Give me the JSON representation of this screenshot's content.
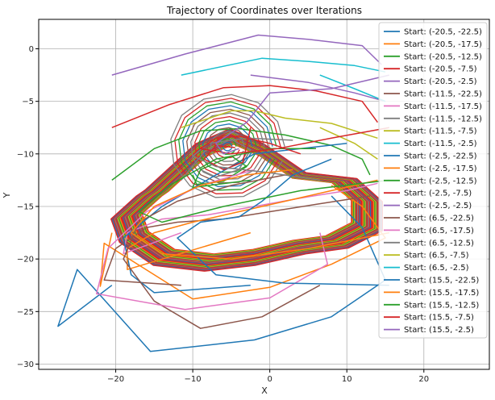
{
  "chart_data": {
    "type": "line",
    "title": "Trajectory of Coordinates over Iterations",
    "xlabel": "X",
    "ylabel": "Y",
    "xlim": [
      -30,
      28.5
    ],
    "ylim": [
      -30.5,
      2.8
    ],
    "x_ticks": [
      -20,
      -10,
      0,
      10,
      20
    ],
    "y_ticks": [
      0,
      -5,
      -10,
      -15,
      -20,
      -25,
      -30
    ],
    "grid": true,
    "legend": "top-right",
    "converged_loop": {
      "x": [
        -15,
        -9,
        -5,
        -1,
        4,
        10,
        13,
        13,
        9,
        4,
        -2,
        -8,
        -14,
        -18,
        -19,
        -16
      ],
      "y": [
        -13.5,
        -9.5,
        -8.2,
        -9.5,
        -12,
        -12.5,
        -14.5,
        -17,
        -18.5,
        -19,
        -20,
        -20.5,
        -20,
        -18,
        -16,
        -14
      ]
    },
    "series": [
      {
        "name": "Start: (-20.5, -22.5)",
        "color": "#1f77b4",
        "x": [
          -20.5,
          -27.5,
          -25,
          -15.5,
          -2,
          8,
          15,
          12,
          8
        ],
        "y": [
          -22.5,
          -26.4,
          -21,
          -28.8,
          -27.7,
          -25.5,
          -22,
          -17,
          -14
        ]
      },
      {
        "name": "Start: (-20.5, -17.5)",
        "color": "#ff7f0e",
        "x": [
          -20.5,
          -22,
          -21.5,
          -10,
          0,
          8,
          15,
          12,
          8
        ],
        "y": [
          -17.5,
          -22.6,
          -18.5,
          -23.8,
          -22.7,
          -20.5,
          -18,
          -15,
          -13
        ]
      },
      {
        "name": "Start: (-20.5, -12.5)",
        "color": "#2ca02c",
        "x": [
          -20.5,
          -15,
          -9,
          -4,
          2,
          8,
          12,
          13
        ],
        "y": [
          -12.5,
          -9.5,
          -7.8,
          -7.6,
          -8.2,
          -9.2,
          -10.5,
          -12
        ]
      },
      {
        "name": "Start: (-20.5, -7.5)",
        "color": "#d62728",
        "x": [
          -20.5,
          -13,
          -6,
          0,
          6,
          12,
          14
        ],
        "y": [
          -7.5,
          -5.3,
          -3.7,
          -3.5,
          -4,
          -5,
          -7
        ]
      },
      {
        "name": "Start: (-20.5, -2.5)",
        "color": "#9467bd",
        "x": [
          -20.5,
          -11,
          -1.5,
          5,
          12,
          14.5
        ],
        "y": [
          -2.5,
          -0.5,
          1.3,
          0.9,
          0.3,
          -1.5
        ]
      },
      {
        "name": "Start: (-11.5, -22.5)",
        "color": "#8c564b",
        "x": [
          -11.5,
          -21.5,
          -20,
          -16,
          -12,
          -6,
          0,
          6,
          13
        ],
        "y": [
          -22.5,
          -22,
          -19,
          -17,
          -16.5,
          -16.2,
          -15.5,
          -14.8,
          -14
        ]
      },
      {
        "name": "Start: (-11.5, -17.5)",
        "color": "#e377c2",
        "x": [
          -11.5,
          -19,
          -18.5,
          -14,
          -8,
          -2,
          4,
          10,
          14
        ],
        "y": [
          -17.5,
          -19.5,
          -17.5,
          -16.2,
          -15.8,
          -15,
          -14.2,
          -13.5,
          -12.8
        ]
      },
      {
        "name": "Start: (-11.5, -12.5)",
        "color": "#7f7f7f",
        "x": [
          -11.5,
          -8.5,
          -5,
          -2.5,
          -4,
          -7,
          -9
        ],
        "y": [
          -12.5,
          -9.8,
          -8.6,
          -9.6,
          -11.5,
          -12.2,
          -11.5
        ]
      },
      {
        "name": "Start: (-11.5, -7.5)",
        "color": "#bcbd22",
        "x": [
          -11.5,
          -5,
          -2,
          2,
          8,
          14
        ],
        "y": [
          -7.5,
          -5.9,
          -5.9,
          -6.6,
          -7.1,
          -8.5
        ]
      },
      {
        "name": "Start: (-11.5, -2.5)",
        "color": "#17becf",
        "x": [
          -11.5,
          -1,
          5,
          11,
          15
        ],
        "y": [
          -2.5,
          -0.9,
          -1.2,
          -1.6,
          -2.2
        ]
      },
      {
        "name": "Start: (-2.5, -22.5)",
        "color": "#1f77b4",
        "x": [
          -2.5,
          -15,
          -18,
          -19,
          -14,
          -7,
          -2,
          4,
          10
        ],
        "y": [
          -22.5,
          -23.2,
          -21.5,
          -18,
          -15,
          -12,
          -10,
          -9.5,
          -9
        ]
      },
      {
        "name": "Start: (-2.5, -17.5)",
        "color": "#ff7f0e",
        "x": [
          -2.5,
          -18.5,
          -18.5,
          -15,
          -10,
          -4,
          2,
          8,
          14
        ],
        "y": [
          -17.5,
          -21,
          -19,
          -17.5,
          -16.5,
          -15.5,
          -14.5,
          -13.5,
          -12.5
        ]
      },
      {
        "name": "Start: (-2.5, -12.5)",
        "color": "#2ca02c",
        "x": [
          -2.5,
          -10,
          -9,
          -5,
          -3,
          -6,
          -9.5,
          -10
        ],
        "y": [
          -12.5,
          -13.2,
          -11.5,
          -10.2,
          -11.2,
          -12.6,
          -12.9,
          -12
        ]
      },
      {
        "name": "Start: (-2.5, -7.5)",
        "color": "#d62728",
        "x": [
          -2.5,
          -3.5,
          -6,
          -8.5,
          -7,
          -4.5
        ],
        "y": [
          -7.5,
          -10.8,
          -11.5,
          -10.5,
          -9.2,
          -9.4
        ]
      },
      {
        "name": "Start: (-2.5, -2.5)",
        "color": "#9467bd",
        "x": [
          -2.5,
          5,
          11,
          15
        ],
        "y": [
          -2.5,
          -3.2,
          -4.2,
          -5
        ]
      },
      {
        "name": "Start: (6.5, -22.5)",
        "color": "#8c564b",
        "x": [
          6.5,
          -1,
          -9,
          -15,
          -19,
          -17,
          -12,
          -5,
          2
        ],
        "y": [
          -22.5,
          -25.5,
          -26.6,
          -24,
          -20,
          -16.5,
          -14.5,
          -13,
          -12
        ]
      },
      {
        "name": "Start: (6.5, -17.5)",
        "color": "#e377c2",
        "x": [
          6.5,
          7.5,
          0,
          -11,
          -22.5,
          -21,
          -16,
          -9,
          -2
        ],
        "y": [
          -17.5,
          -20.5,
          -23.7,
          -24.8,
          -23.3,
          -19,
          -15.5,
          -13,
          -11.5
        ]
      },
      {
        "name": "Start: (6.5, -12.5)",
        "color": "#7f7f7f",
        "x": [
          6.5,
          0,
          -7,
          -10,
          -8,
          -3,
          3
        ],
        "y": [
          -12.5,
          -11.8,
          -11.2,
          -10.2,
          -9,
          -8.5,
          -8.7
        ]
      },
      {
        "name": "Start: (6.5, -7.5)",
        "color": "#bcbd22",
        "x": [
          6.5,
          11,
          14
        ],
        "y": [
          -7.5,
          -9,
          -10.5
        ]
      },
      {
        "name": "Start: (6.5, -2.5)",
        "color": "#17becf",
        "x": [
          6.5,
          11,
          15
        ],
        "y": [
          -2.5,
          -3.8,
          -5
        ]
      },
      {
        "name": "Start: (15.5, -22.5)",
        "color": "#1f77b4",
        "x": [
          15.5,
          2,
          -7,
          -12,
          -9,
          -4,
          -1,
          3,
          8
        ],
        "y": [
          -22.5,
          -22.3,
          -21.5,
          -18,
          -16.5,
          -16,
          -14.5,
          -12,
          -10.5
        ]
      },
      {
        "name": "Start: (15.5, -17.5)",
        "color": "#ff7f0e",
        "x": [
          15.5,
          5,
          -5,
          -14,
          -18,
          -15,
          -9,
          -3,
          3
        ],
        "y": [
          -17.5,
          -19,
          -20,
          -19.5,
          -17.5,
          -15,
          -13,
          -12,
          -11.5
        ]
      },
      {
        "name": "Start: (15.5, -12.5)",
        "color": "#2ca02c",
        "x": [
          15.5,
          4,
          -6,
          -14,
          -17,
          -13,
          -7,
          0,
          6
        ],
        "y": [
          -12.5,
          -13.5,
          -15,
          -16.5,
          -15.5,
          -13,
          -10.5,
          -9.5,
          -9.5
        ]
      },
      {
        "name": "Start: (15.5, -7.5)",
        "color": "#d62728",
        "x": [
          15.5,
          8,
          1,
          -5,
          -9,
          -7,
          -4,
          0,
          4
        ],
        "y": [
          -7.5,
          -8.5,
          -9.5,
          -10,
          -9.5,
          -8.5,
          -8.3,
          -9,
          -10
        ]
      },
      {
        "name": "Start: (15.5, -2.5)",
        "color": "#9467bd",
        "x": [
          15.5,
          8,
          0,
          -3,
          -7,
          -6,
          -4
        ],
        "y": [
          -2.5,
          -3.8,
          -4.2,
          -7,
          -9,
          -10,
          -9.5
        ]
      }
    ]
  }
}
